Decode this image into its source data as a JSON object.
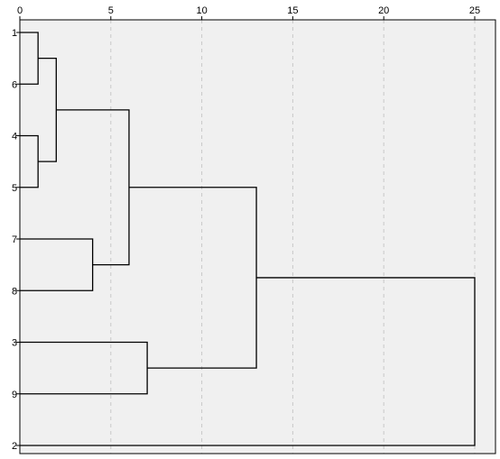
{
  "chart_data": {
    "type": "dendrogram",
    "title": "",
    "xlabel": "",
    "ylabel": "",
    "x_ticks": [
      0,
      5,
      10,
      15,
      20,
      25
    ],
    "xlim": [
      0,
      25
    ],
    "grid": "vertical-dashed",
    "leaf_order": [
      "1",
      "6",
      "4",
      "5",
      "7",
      "8",
      "3",
      "9",
      "2"
    ],
    "merges": [
      {
        "left": "1",
        "right": "6",
        "distance": 1
      },
      {
        "left": "4",
        "right": "5",
        "distance": 1
      },
      {
        "left": "1+6",
        "right": "4+5",
        "distance": 2
      },
      {
        "left": "7",
        "right": "8",
        "distance": 4
      },
      {
        "left": "1+6+4+5",
        "right": "7+8",
        "distance": 6
      },
      {
        "left": "3",
        "right": "9",
        "distance": 7
      },
      {
        "left": "1+6+4+5+7+8",
        "right": "3+9",
        "distance": 13
      },
      {
        "left": "1+6+4+5+7+8+3+9",
        "right": "2",
        "distance": 25
      }
    ]
  },
  "colors": {
    "plot_background": "#f0f0f0",
    "grid": "#c8c8c8",
    "line": "#000000",
    "border": "#000000"
  }
}
